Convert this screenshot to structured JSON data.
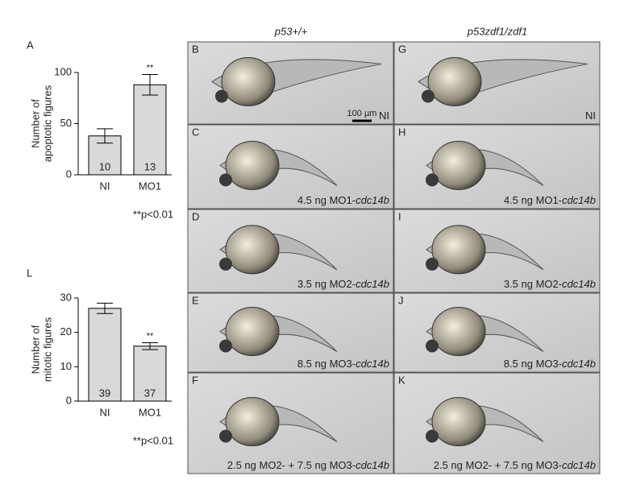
{
  "chart_data": [
    {
      "type": "bar",
      "panel": "A",
      "ylabel": [
        "Number of",
        "apoptotic figures"
      ],
      "categories": [
        "NI",
        "MO1"
      ],
      "values": [
        38,
        88
      ],
      "errors": [
        7,
        10
      ],
      "n_labels": [
        "10",
        "13"
      ],
      "significance": {
        "category": "MO1",
        "label": "**"
      },
      "note": "**p<0.01",
      "color": "#d9d9d9",
      "ylim": [
        0,
        100
      ],
      "yticks": [
        0,
        50,
        100
      ]
    },
    {
      "type": "bar",
      "panel": "L",
      "ylabel": [
        "Number of",
        "mitotic figures"
      ],
      "categories": [
        "NI",
        "MO1"
      ],
      "values": [
        27,
        16
      ],
      "errors": [
        1.5,
        1
      ],
      "n_labels": [
        "39",
        "37"
      ],
      "significance": {
        "category": "MO1",
        "label": "**"
      },
      "note": "**p<0.01",
      "color": "#d9d9d9",
      "ylim": [
        0,
        30
      ],
      "yticks": [
        0,
        10,
        20,
        30
      ]
    }
  ],
  "panels": {
    "columns": [
      "p53+/+",
      "p53zdf1/zdf1"
    ],
    "scale_bar": "100 µm",
    "images": [
      [
        {
          "letter": "B",
          "dose": "NI"
        },
        {
          "letter": "G",
          "dose": "NI"
        }
      ],
      [
        {
          "letter": "C",
          "dose": "4.5 ng MO1-",
          "gene": "cdc14b"
        },
        {
          "letter": "H",
          "dose": "4.5 ng MO1-",
          "gene": "cdc14b"
        }
      ],
      [
        {
          "letter": "D",
          "dose": "3.5 ng MO2-",
          "gene": "cdc14b"
        },
        {
          "letter": "I",
          "dose": "3.5 ng MO2-",
          "gene": "cdc14b"
        }
      ],
      [
        {
          "letter": "E",
          "dose": "8.5 ng MO3-",
          "gene": "cdc14b"
        },
        {
          "letter": "J",
          "dose": "8.5 ng MO3-",
          "gene": "cdc14b"
        }
      ],
      [
        {
          "letter": "F",
          "dose": "2.5 ng MO2- + 7.5 ng MO3-",
          "gene": "cdc14b"
        },
        {
          "letter": "K",
          "dose": "2.5 ng MO2- + 7.5 ng MO3-",
          "gene": "cdc14b"
        }
      ]
    ]
  }
}
